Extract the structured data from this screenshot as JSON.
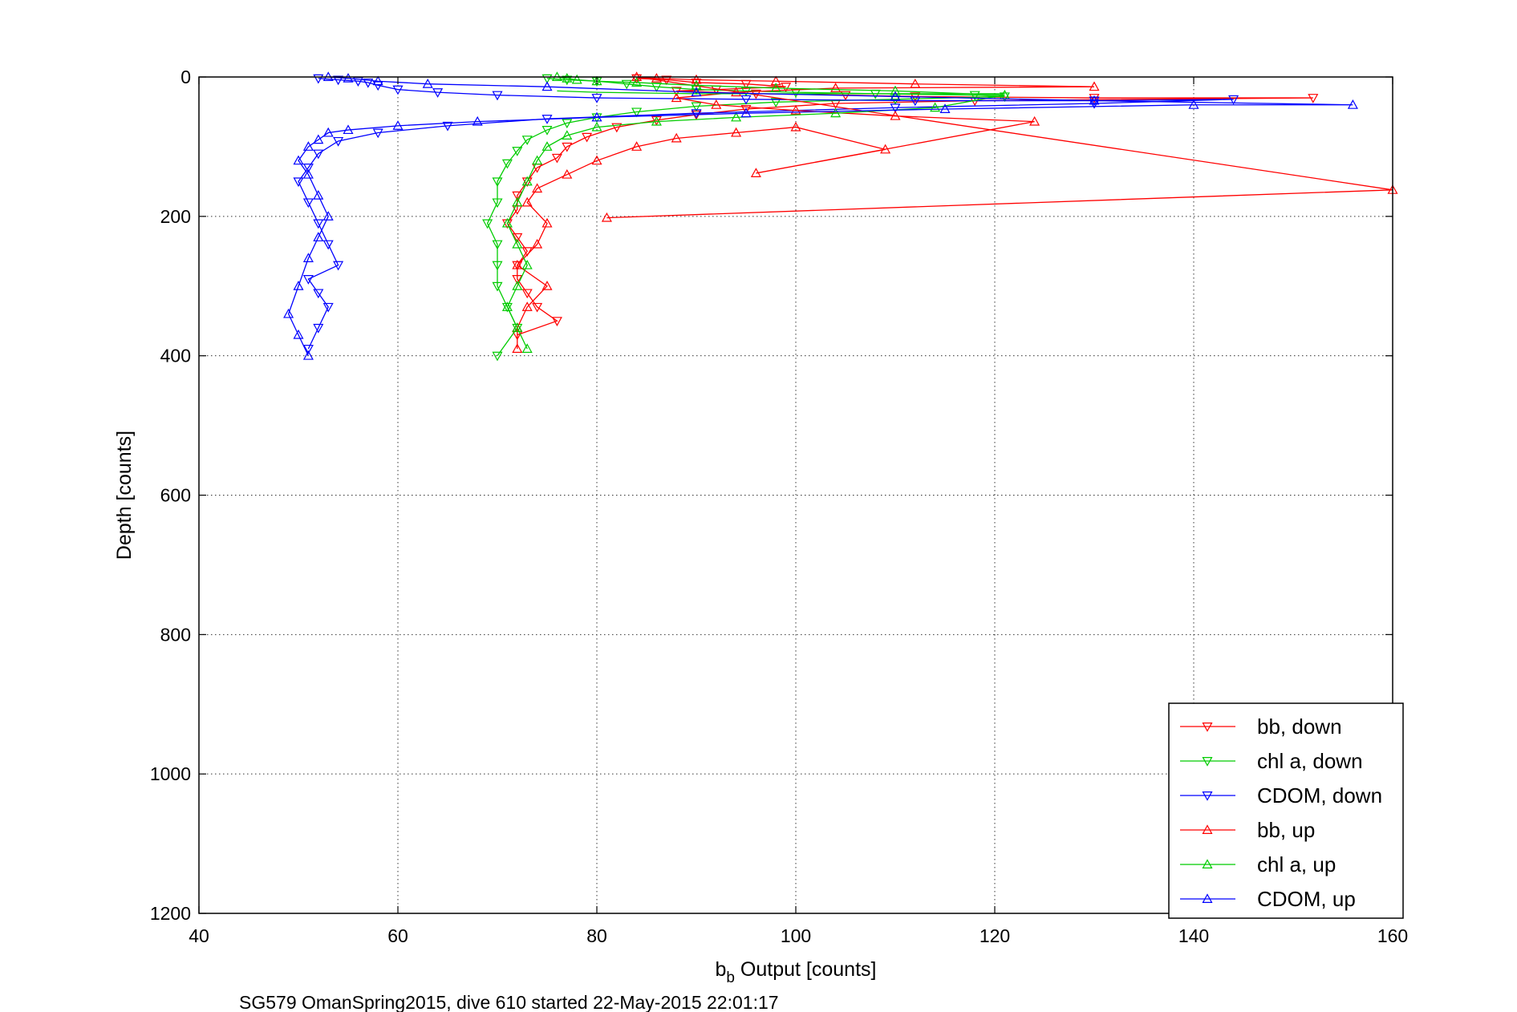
{
  "chart_data": {
    "type": "scatter",
    "caption": "SG579 OmanSpring2015, dive 610 started 22-May-2015 22:01:17",
    "xlabel_main": "b",
    "xlabel_sub": "b",
    "xlabel_rest": " Output [counts]",
    "ylabel": "Depth [counts]",
    "xlim": [
      40,
      160
    ],
    "ylim": [
      0,
      1200
    ],
    "y_reversed": true,
    "grid": true,
    "legend_placement": "bottom-right",
    "xticks": [
      "40",
      "60",
      "80",
      "100",
      "120",
      "140",
      "160"
    ],
    "yticks": [
      "0",
      "200",
      "400",
      "600",
      "800",
      "1000",
      "1200"
    ],
    "series": [
      {
        "name": "bb, down",
        "color": "#ff0000",
        "marker": "triangle-down",
        "x": [
          84,
          87,
          90,
          95,
          99,
          92,
          88,
          96,
          105,
          112,
          130,
          152,
          118,
          104,
          95,
          90,
          86,
          82,
          79,
          77,
          76,
          74,
          73,
          72,
          72,
          71,
          72,
          73,
          72,
          72,
          73,
          74,
          76,
          72
        ],
        "y": [
          2,
          4,
          8,
          10,
          14,
          18,
          20,
          24,
          26,
          28,
          30,
          30,
          34,
          38,
          46,
          54,
          62,
          72,
          86,
          100,
          116,
          130,
          150,
          170,
          190,
          210,
          230,
          250,
          270,
          290,
          310,
          330,
          350,
          370
        ]
      },
      {
        "name": "chl a, down",
        "color": "#00cc00",
        "marker": "triangle-down",
        "x": [
          75,
          77,
          80,
          83,
          86,
          90,
          95,
          100,
          108,
          118,
          121,
          110,
          98,
          90,
          84,
          80,
          77,
          75,
          73,
          72,
          71,
          70,
          70,
          69,
          70,
          70,
          70,
          71,
          72,
          70
        ],
        "y": [
          2,
          4,
          6,
          10,
          14,
          18,
          20,
          22,
          24,
          26,
          28,
          32,
          36,
          42,
          50,
          58,
          66,
          76,
          90,
          106,
          124,
          150,
          180,
          210,
          240,
          270,
          300,
          330,
          360,
          400
        ]
      },
      {
        "name": "CDOM, down",
        "color": "#0000ff",
        "marker": "triangle-down",
        "x": [
          52,
          54,
          56,
          57,
          58,
          60,
          64,
          70,
          80,
          95,
          112,
          130,
          144,
          130,
          110,
          90,
          75,
          65,
          58,
          54,
          52,
          51,
          50,
          51,
          52,
          53,
          54,
          51,
          52,
          53,
          52,
          51
        ],
        "y": [
          2,
          4,
          6,
          8,
          12,
          18,
          22,
          26,
          30,
          32,
          34,
          34,
          32,
          38,
          44,
          52,
          60,
          70,
          80,
          92,
          110,
          130,
          150,
          180,
          210,
          240,
          270,
          290,
          310,
          330,
          360,
          390
        ]
      },
      {
        "name": "bb, up",
        "color": "#ff0000",
        "marker": "triangle-up",
        "x": [
          72,
          72,
          73,
          75,
          72,
          74,
          75,
          73,
          74,
          77,
          80,
          84,
          88,
          94,
          100,
          109,
          96,
          124,
          110,
          100,
          92,
          88,
          94,
          104,
          130,
          112,
          98,
          90,
          86,
          84,
          160,
          81
        ],
        "y": [
          390,
          360,
          330,
          300,
          270,
          240,
          210,
          180,
          160,
          140,
          120,
          100,
          88,
          80,
          72,
          104,
          138,
          64,
          56,
          48,
          40,
          30,
          22,
          16,
          14,
          10,
          6,
          4,
          2,
          0,
          162,
          202
        ]
      },
      {
        "name": "chl a, up",
        "color": "#00cc00",
        "marker": "triangle-up",
        "x": [
          73,
          72,
          71,
          72,
          73,
          72,
          71,
          72,
          73,
          74,
          75,
          77,
          80,
          86,
          94,
          104,
          114,
          121,
          110,
          98,
          90,
          84,
          80,
          78,
          77,
          76
        ],
        "y": [
          390,
          360,
          330,
          300,
          270,
          240,
          210,
          180,
          150,
          120,
          100,
          84,
          72,
          64,
          58,
          52,
          44,
          26,
          20,
          16,
          12,
          8,
          6,
          4,
          2,
          0
        ],
        "line_x": [
          76,
          80,
          90,
          100,
          110,
          121
        ],
        "line_y": [
          20,
          22,
          24,
          24,
          24,
          24
        ]
      },
      {
        "name": "CDOM, up",
        "color": "#0000ff",
        "marker": "triangle-up",
        "x": [
          51,
          50,
          49,
          50,
          51,
          52,
          53,
          52,
          51,
          50,
          51,
          52,
          53,
          55,
          60,
          68,
          80,
          95,
          115,
          140,
          156,
          130,
          110,
          90,
          75,
          63,
          58,
          55,
          53
        ],
        "y": [
          400,
          370,
          340,
          300,
          260,
          230,
          200,
          170,
          140,
          120,
          100,
          90,
          80,
          76,
          70,
          64,
          58,
          52,
          46,
          40,
          40,
          34,
          28,
          22,
          14,
          10,
          6,
          2,
          0
        ]
      }
    ]
  }
}
